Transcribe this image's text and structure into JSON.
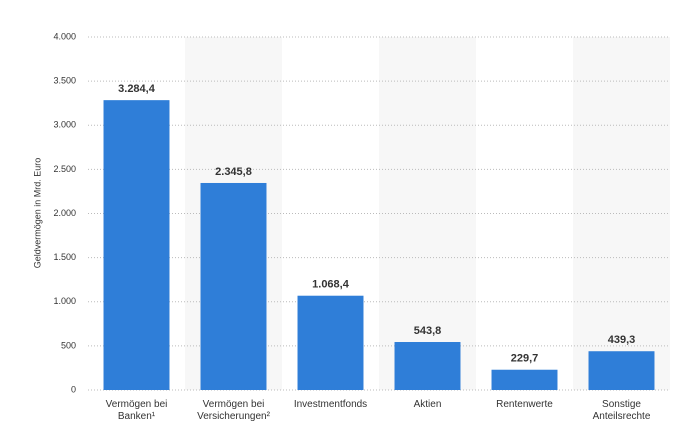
{
  "chart_data": {
    "type": "bar",
    "y_label": "Geldvermögen in Mrd. Euro",
    "categories": [
      "Vermögen bei Banken¹",
      "Vermögen bei Versicherungen²",
      "Investmentfonds",
      "Aktien",
      "Rentenwerte",
      "Sonstige Anteilsrechte"
    ],
    "values": [
      3284.4,
      2345.8,
      1068.4,
      543.8,
      229.7,
      439.3
    ],
    "value_labels": [
      "3.284,4",
      "2.345,8",
      "1.068,4",
      "543,8",
      "229,7",
      "439,3"
    ],
    "color": "#2f7ed8",
    "ylim": [
      0,
      4000
    ],
    "yticks": [
      0,
      500,
      {
        "value": 1000,
        "label": "1.000"
      },
      {
        "value": 1500,
        "label": "1.500"
      },
      {
        "value": 2000,
        "label": "2.000"
      },
      {
        "value": 2500,
        "label": "2.500"
      },
      {
        "value": 3000,
        "label": "3.000"
      },
      {
        "value": 3500,
        "label": "3.500"
      },
      {
        "value": 4000,
        "label": "4.000"
      }
    ],
    "grid": true
  }
}
